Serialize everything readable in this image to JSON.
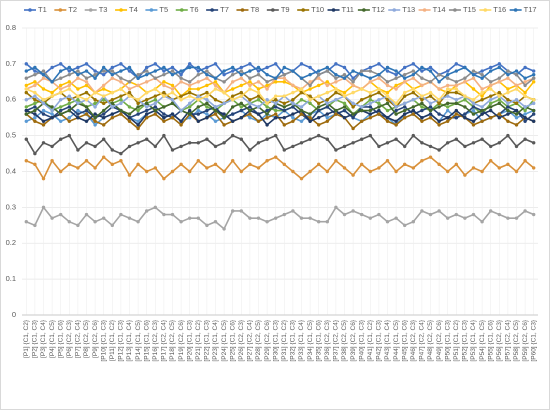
{
  "chart_data": {
    "type": "line",
    "categories": [
      "[P1] {C1, C2}",
      "[P2] {C1, C3}",
      "[P3] {C1, C4}",
      "[P4] {C1, C5}",
      "[P5] {C1, C6}",
      "[P6] {C2, C3}",
      "[P7] {C2, C4}",
      "[P8] {C2, C5}",
      "[P9] {C2, C6}",
      "[P10] {C1, C3}",
      "[P11] {C1, C2}",
      "[P12] {C1, C3}",
      "[P13] {C1, C4}",
      "[P14] {C1, C5}",
      "[P15] {C1, C6}",
      "[P16] {C2, C3}",
      "[P17] {C2, C4}",
      "[P18] {C2, C5}",
      "[P19] {C2, C6}",
      "[P20] {C1, C3}",
      "[P21] {C1, C2}",
      "[P22] {C1, C3}",
      "[P23] {C1, C4}",
      "[P24] {C1, C5}",
      "[P25] {C1, C6}",
      "[P26] {C2, C3}",
      "[P27] {C2, C4}",
      "[P28] {C2, C5}",
      "[P29] {C2, C6}",
      "[P30] {C1, C3}",
      "[P31] {C1, C2}",
      "[P32] {C1, C3}",
      "[P33] {C1, C4}",
      "[P34] {C1, C5}",
      "[P35] {C1, C6}",
      "[P36] {C2, C3}",
      "[P37] {C2, C4}",
      "[P38] {C2, C5}",
      "[P39] {C2, C6}",
      "[P40] {C1, C3}",
      "[P41] {C1, C2}",
      "[P42] {C1, C3}",
      "[P43] {C1, C4}",
      "[P44] {C1, C5}",
      "[P45] {C1, C6}",
      "[P46] {C2, C3}",
      "[P47] {C2, C4}",
      "[P48] {C2, C5}",
      "[P49] {C2, C6}",
      "[P50] {C1, C3}",
      "[P51] {C1, C2}",
      "[P52] {C1, C3}",
      "[P53] {C1, C4}",
      "[P54] {C1, C5}",
      "[P55] {C1, C6}",
      "[P56] {C2, C3}",
      "[P57] {C2, C4}",
      "[P58] {C2, C5}",
      "[P59] {C2, C6}",
      "[P60] {C1, C3}"
    ],
    "ylim": [
      0,
      0.8
    ],
    "yticks": [
      0,
      0.1,
      0.2,
      0.3,
      0.4,
      0.5,
      0.6,
      0.7,
      0.8
    ],
    "grid": true,
    "legend": "top",
    "series": [
      {
        "name": "T1",
        "color": "#4472c4",
        "values": [
          0.7,
          0.68,
          0.67,
          0.69,
          0.7,
          0.68,
          0.69,
          0.7,
          0.68,
          0.67,
          0.69,
          0.7,
          0.68,
          0.66,
          0.69,
          0.7,
          0.68,
          0.69,
          0.67,
          0.7,
          0.68,
          0.69,
          0.7,
          0.67,
          0.68,
          0.69,
          0.7,
          0.68,
          0.69,
          0.7,
          0.67,
          0.68,
          0.7,
          0.69,
          0.67,
          0.68,
          0.7,
          0.69,
          0.66,
          0.68,
          0.69,
          0.7,
          0.68,
          0.67,
          0.69,
          0.7,
          0.68,
          0.69,
          0.67,
          0.68,
          0.7,
          0.69,
          0.67,
          0.68,
          0.69,
          0.7,
          0.68,
          0.67,
          0.69,
          0.68
        ]
      },
      {
        "name": "T2",
        "color": "#d9913a",
        "values": [
          0.43,
          0.42,
          0.38,
          0.43,
          0.4,
          0.42,
          0.41,
          0.43,
          0.41,
          0.44,
          0.42,
          0.43,
          0.39,
          0.42,
          0.4,
          0.41,
          0.38,
          0.4,
          0.42,
          0.4,
          0.43,
          0.41,
          0.42,
          0.4,
          0.43,
          0.4,
          0.42,
          0.41,
          0.43,
          0.44,
          0.42,
          0.4,
          0.38,
          0.4,
          0.42,
          0.4,
          0.43,
          0.41,
          0.39,
          0.42,
          0.4,
          0.41,
          0.43,
          0.4,
          0.42,
          0.41,
          0.43,
          0.44,
          0.42,
          0.4,
          0.42,
          0.39,
          0.41,
          0.4,
          0.43,
          0.41,
          0.42,
          0.4,
          0.43,
          0.41
        ]
      },
      {
        "name": "T3",
        "color": "#a5a5a5",
        "values": [
          0.26,
          0.25,
          0.3,
          0.27,
          0.28,
          0.26,
          0.25,
          0.28,
          0.26,
          0.27,
          0.25,
          0.28,
          0.27,
          0.26,
          0.29,
          0.3,
          0.28,
          0.28,
          0.26,
          0.27,
          0.27,
          0.25,
          0.26,
          0.24,
          0.29,
          0.29,
          0.27,
          0.27,
          0.26,
          0.27,
          0.28,
          0.29,
          0.27,
          0.27,
          0.26,
          0.26,
          0.3,
          0.28,
          0.29,
          0.28,
          0.27,
          0.28,
          0.26,
          0.27,
          0.25,
          0.26,
          0.29,
          0.28,
          0.29,
          0.27,
          0.28,
          0.27,
          0.28,
          0.26,
          0.29,
          0.28,
          0.27,
          0.27,
          0.29,
          0.28
        ]
      },
      {
        "name": "T4",
        "color": "#ffc000",
        "values": [
          0.64,
          0.65,
          0.63,
          0.62,
          0.64,
          0.65,
          0.63,
          0.64,
          0.62,
          0.63,
          0.62,
          0.63,
          0.65,
          0.64,
          0.62,
          0.63,
          0.65,
          0.64,
          0.61,
          0.63,
          0.63,
          0.64,
          0.65,
          0.62,
          0.63,
          0.64,
          0.65,
          0.63,
          0.64,
          0.65,
          0.65,
          0.64,
          0.62,
          0.63,
          0.64,
          0.65,
          0.63,
          0.62,
          0.64,
          0.63,
          0.65,
          0.63,
          0.62,
          0.64,
          0.65,
          0.63,
          0.64,
          0.65,
          0.63,
          0.62,
          0.64,
          0.65,
          0.63,
          0.61,
          0.64,
          0.65,
          0.63,
          0.64,
          0.62,
          0.65
        ]
      },
      {
        "name": "T5",
        "color": "#5b9bd5",
        "values": [
          0.54,
          0.55,
          0.57,
          0.56,
          0.54,
          0.55,
          0.57,
          0.56,
          0.53,
          0.55,
          0.56,
          0.57,
          0.55,
          0.54,
          0.56,
          0.57,
          0.55,
          0.56,
          0.54,
          0.55,
          0.57,
          0.56,
          0.54,
          0.55,
          0.56,
          0.57,
          0.55,
          0.54,
          0.56,
          0.55,
          0.57,
          0.55,
          0.54,
          0.56,
          0.57,
          0.55,
          0.56,
          0.57,
          0.55,
          0.54,
          0.56,
          0.57,
          0.55,
          0.53,
          0.56,
          0.57,
          0.55,
          0.56,
          0.54,
          0.57,
          0.55,
          0.56,
          0.57,
          0.54,
          0.55,
          0.56,
          0.57,
          0.55,
          0.56,
          0.57
        ]
      },
      {
        "name": "T6",
        "color": "#70ad47",
        "values": [
          0.58,
          0.59,
          0.6,
          0.57,
          0.58,
          0.59,
          0.6,
          0.58,
          0.59,
          0.6,
          0.59,
          0.6,
          0.58,
          0.57,
          0.59,
          0.6,
          0.58,
          0.59,
          0.57,
          0.58,
          0.6,
          0.58,
          0.57,
          0.59,
          0.6,
          0.58,
          0.59,
          0.6,
          0.58,
          0.57,
          0.57,
          0.58,
          0.6,
          0.59,
          0.57,
          0.58,
          0.6,
          0.59,
          0.56,
          0.58,
          0.6,
          0.59,
          0.57,
          0.58,
          0.59,
          0.6,
          0.58,
          0.57,
          0.59,
          0.58,
          0.59,
          0.6,
          0.58,
          0.56,
          0.59,
          0.6,
          0.58,
          0.59,
          0.57,
          0.6
        ]
      },
      {
        "name": "T7",
        "color": "#264478",
        "values": [
          0.57,
          0.58,
          0.56,
          0.55,
          0.57,
          0.58,
          0.56,
          0.57,
          0.55,
          0.56,
          0.58,
          0.57,
          0.55,
          0.56,
          0.57,
          0.58,
          0.56,
          0.55,
          0.57,
          0.56,
          0.56,
          0.57,
          0.58,
          0.55,
          0.56,
          0.57,
          0.58,
          0.56,
          0.57,
          0.58,
          0.57,
          0.58,
          0.56,
          0.54,
          0.57,
          0.58,
          0.56,
          0.57,
          0.55,
          0.58,
          0.58,
          0.56,
          0.55,
          0.57,
          0.58,
          0.56,
          0.57,
          0.58,
          0.56,
          0.55,
          0.55,
          0.56,
          0.58,
          0.57,
          0.55,
          0.56,
          0.58,
          0.57,
          0.54,
          0.56
        ]
      },
      {
        "name": "T8",
        "color": "#9e6b0e",
        "values": [
          0.56,
          0.54,
          0.53,
          0.55,
          0.56,
          0.54,
          0.55,
          0.56,
          0.54,
          0.53,
          0.55,
          0.56,
          0.54,
          0.52,
          0.55,
          0.56,
          0.54,
          0.55,
          0.53,
          0.56,
          0.54,
          0.55,
          0.56,
          0.53,
          0.54,
          0.55,
          0.56,
          0.54,
          0.55,
          0.56,
          0.53,
          0.54,
          0.56,
          0.55,
          0.53,
          0.54,
          0.56,
          0.55,
          0.52,
          0.54,
          0.55,
          0.56,
          0.54,
          0.53,
          0.55,
          0.56,
          0.54,
          0.55,
          0.53,
          0.54,
          0.56,
          0.55,
          0.53,
          0.54,
          0.55,
          0.56,
          0.54,
          0.53,
          0.55,
          0.54
        ]
      },
      {
        "name": "T9",
        "color": "#595959",
        "values": [
          0.49,
          0.45,
          0.48,
          0.47,
          0.49,
          0.5,
          0.46,
          0.48,
          0.47,
          0.49,
          0.46,
          0.45,
          0.47,
          0.48,
          0.49,
          0.47,
          0.5,
          0.46,
          0.47,
          0.48,
          0.48,
          0.49,
          0.47,
          0.48,
          0.5,
          0.49,
          0.46,
          0.48,
          0.49,
          0.5,
          0.46,
          0.47,
          0.48,
          0.49,
          0.5,
          0.49,
          0.46,
          0.47,
          0.48,
          0.49,
          0.5,
          0.47,
          0.48,
          0.49,
          0.47,
          0.5,
          0.48,
          0.47,
          0.46,
          0.48,
          0.49,
          0.47,
          0.48,
          0.49,
          0.47,
          0.48,
          0.5,
          0.47,
          0.49,
          0.48
        ]
      },
      {
        "name": "T10",
        "color": "#997300",
        "values": [
          0.62,
          0.6,
          0.59,
          0.61,
          0.62,
          0.6,
          0.61,
          0.62,
          0.6,
          0.59,
          0.6,
          0.61,
          0.62,
          0.59,
          0.6,
          0.61,
          0.62,
          0.6,
          0.61,
          0.62,
          0.61,
          0.62,
          0.6,
          0.59,
          0.61,
          0.62,
          0.6,
          0.61,
          0.59,
          0.6,
          0.59,
          0.6,
          0.62,
          0.61,
          0.59,
          0.6,
          0.62,
          0.61,
          0.58,
          0.6,
          0.61,
          0.62,
          0.6,
          0.58,
          0.61,
          0.62,
          0.6,
          0.61,
          0.59,
          0.62,
          0.62,
          0.61,
          0.59,
          0.6,
          0.61,
          0.62,
          0.6,
          0.59,
          0.61,
          0.6
        ]
      },
      {
        "name": "T11",
        "color": "#1f3864",
        "values": [
          0.57,
          0.56,
          0.54,
          0.55,
          0.56,
          0.57,
          0.55,
          0.54,
          0.56,
          0.55,
          0.56,
          0.57,
          0.55,
          0.53,
          0.56,
          0.57,
          0.55,
          0.56,
          0.54,
          0.57,
          0.54,
          0.55,
          0.57,
          0.56,
          0.54,
          0.55,
          0.57,
          0.56,
          0.53,
          0.55,
          0.55,
          0.56,
          0.57,
          0.54,
          0.55,
          0.56,
          0.57,
          0.55,
          0.56,
          0.57,
          0.56,
          0.57,
          0.55,
          0.54,
          0.56,
          0.57,
          0.55,
          0.56,
          0.54,
          0.55,
          0.57,
          0.55,
          0.54,
          0.56,
          0.57,
          0.55,
          0.56,
          0.57,
          0.55,
          0.54
        ]
      },
      {
        "name": "T12",
        "color": "#43682b",
        "values": [
          0.56,
          0.57,
          0.59,
          0.58,
          0.56,
          0.57,
          0.59,
          0.58,
          0.55,
          0.57,
          0.59,
          0.57,
          0.56,
          0.58,
          0.59,
          0.57,
          0.58,
          0.59,
          0.57,
          0.56,
          0.58,
          0.59,
          0.57,
          0.55,
          0.58,
          0.59,
          0.57,
          0.58,
          0.56,
          0.59,
          0.58,
          0.59,
          0.57,
          0.56,
          0.58,
          0.59,
          0.57,
          0.58,
          0.56,
          0.57,
          0.57,
          0.58,
          0.59,
          0.56,
          0.57,
          0.58,
          0.59,
          0.57,
          0.58,
          0.59,
          0.59,
          0.58,
          0.56,
          0.57,
          0.58,
          0.59,
          0.57,
          0.56,
          0.58,
          0.57
        ]
      },
      {
        "name": "T13",
        "color": "#8faadc",
        "values": [
          0.6,
          0.61,
          0.59,
          0.57,
          0.6,
          0.61,
          0.59,
          0.6,
          0.58,
          0.61,
          0.58,
          0.59,
          0.61,
          0.6,
          0.58,
          0.59,
          0.61,
          0.6,
          0.57,
          0.59,
          0.61,
          0.6,
          0.58,
          0.59,
          0.6,
          0.61,
          0.59,
          0.58,
          0.6,
          0.59,
          0.61,
          0.59,
          0.58,
          0.6,
          0.61,
          0.59,
          0.6,
          0.61,
          0.59,
          0.58,
          0.59,
          0.6,
          0.61,
          0.58,
          0.59,
          0.6,
          0.61,
          0.59,
          0.6,
          0.61,
          0.6,
          0.61,
          0.59,
          0.58,
          0.6,
          0.61,
          0.59,
          0.6,
          0.58,
          0.59
        ]
      },
      {
        "name": "T14",
        "color": "#f4b183",
        "values": [
          0.63,
          0.64,
          0.66,
          0.65,
          0.63,
          0.64,
          0.66,
          0.65,
          0.62,
          0.64,
          0.66,
          0.65,
          0.63,
          0.64,
          0.65,
          0.66,
          0.64,
          0.63,
          0.65,
          0.64,
          0.65,
          0.66,
          0.64,
          0.62,
          0.65,
          0.66,
          0.64,
          0.65,
          0.63,
          0.66,
          0.66,
          0.64,
          0.63,
          0.65,
          0.66,
          0.64,
          0.65,
          0.66,
          0.64,
          0.63,
          0.65,
          0.66,
          0.64,
          0.63,
          0.65,
          0.66,
          0.64,
          0.65,
          0.63,
          0.64,
          0.64,
          0.65,
          0.66,
          0.63,
          0.64,
          0.65,
          0.66,
          0.64,
          0.65,
          0.66
        ]
      },
      {
        "name": "T15",
        "color": "#8c8c8c",
        "values": [
          0.66,
          0.67,
          0.68,
          0.65,
          0.66,
          0.67,
          0.68,
          0.66,
          0.67,
          0.68,
          0.68,
          0.66,
          0.65,
          0.67,
          0.68,
          0.66,
          0.67,
          0.68,
          0.66,
          0.65,
          0.67,
          0.68,
          0.66,
          0.65,
          0.67,
          0.68,
          0.66,
          0.67,
          0.65,
          0.66,
          0.67,
          0.68,
          0.66,
          0.64,
          0.67,
          0.68,
          0.66,
          0.67,
          0.65,
          0.68,
          0.68,
          0.67,
          0.65,
          0.66,
          0.67,
          0.68,
          0.66,
          0.65,
          0.67,
          0.66,
          0.65,
          0.66,
          0.68,
          0.67,
          0.65,
          0.66,
          0.68,
          0.67,
          0.64,
          0.66
        ]
      },
      {
        "name": "T16",
        "color": "#ffd966",
        "values": [
          0.63,
          0.62,
          0.6,
          0.61,
          0.62,
          0.63,
          0.61,
          0.6,
          0.62,
          0.61,
          0.62,
          0.63,
          0.61,
          0.6,
          0.62,
          0.63,
          0.61,
          0.62,
          0.6,
          0.61,
          0.6,
          0.61,
          0.63,
          0.62,
          0.6,
          0.61,
          0.63,
          0.62,
          0.59,
          0.61,
          0.61,
          0.62,
          0.63,
          0.6,
          0.61,
          0.62,
          0.63,
          0.61,
          0.62,
          0.63,
          0.62,
          0.63,
          0.61,
          0.59,
          0.62,
          0.63,
          0.61,
          0.62,
          0.6,
          0.63,
          0.63,
          0.61,
          0.6,
          0.62,
          0.63,
          0.61,
          0.62,
          0.63,
          0.61,
          0.6
        ]
      },
      {
        "name": "T17",
        "color": "#2e75b6",
        "values": [
          0.68,
          0.69,
          0.67,
          0.65,
          0.68,
          0.69,
          0.67,
          0.68,
          0.66,
          0.69,
          0.67,
          0.68,
          0.69,
          0.66,
          0.67,
          0.68,
          0.69,
          0.67,
          0.68,
          0.69,
          0.69,
          0.67,
          0.66,
          0.68,
          0.69,
          0.67,
          0.68,
          0.69,
          0.67,
          0.66,
          0.69,
          0.68,
          0.66,
          0.67,
          0.68,
          0.69,
          0.67,
          0.66,
          0.68,
          0.67,
          0.66,
          0.67,
          0.69,
          0.68,
          0.66,
          0.67,
          0.69,
          0.68,
          0.65,
          0.67,
          0.68,
          0.69,
          0.67,
          0.66,
          0.68,
          0.69,
          0.67,
          0.68,
          0.66,
          0.67
        ]
      }
    ]
  }
}
